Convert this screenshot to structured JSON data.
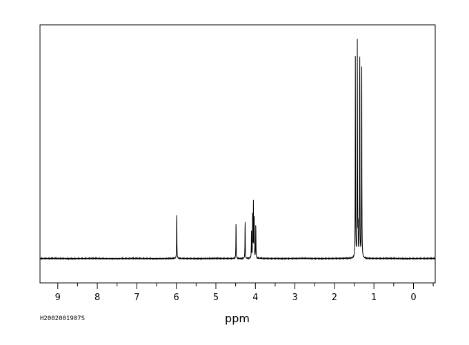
{
  "sample_id": "H2002001907S",
  "colors": {
    "line": "#000000",
    "frame": "#000000",
    "background": "#ffffff"
  },
  "chart_data": {
    "type": "line",
    "xlabel": "ppm",
    "ylabel": "",
    "title": "",
    "x_reversed": true,
    "xlim": [
      9.45,
      -0.55
    ],
    "ylim": [
      -0.12,
      1.15
    ],
    "grid": false,
    "x_ticks": [
      9,
      8,
      7,
      6,
      5,
      4,
      3,
      2,
      1,
      0
    ],
    "tick_labels": [
      "9",
      "8",
      "7",
      "6",
      "5",
      "4",
      "3",
      "2",
      "1",
      "0"
    ],
    "baseline": 0,
    "peaks": [
      {
        "ppm": 5.99,
        "height": 0.25
      },
      {
        "ppm": 4.49,
        "height": 0.2
      },
      {
        "ppm": 4.26,
        "height": 0.21
      },
      {
        "ppm": 4.1,
        "height": 0.13
      },
      {
        "ppm": 4.07,
        "height": 0.22
      },
      {
        "ppm": 4.05,
        "height": 0.27
      },
      {
        "ppm": 4.03,
        "height": 0.2
      },
      {
        "ppm": 3.99,
        "height": 0.19
      },
      {
        "ppm": 1.47,
        "height": 1.03
      },
      {
        "ppm": 1.42,
        "height": 1.11
      },
      {
        "ppm": 1.4,
        "height": 0.14
      },
      {
        "ppm": 1.36,
        "height": 1.15
      },
      {
        "ppm": 1.31,
        "height": 1.1
      }
    ]
  }
}
